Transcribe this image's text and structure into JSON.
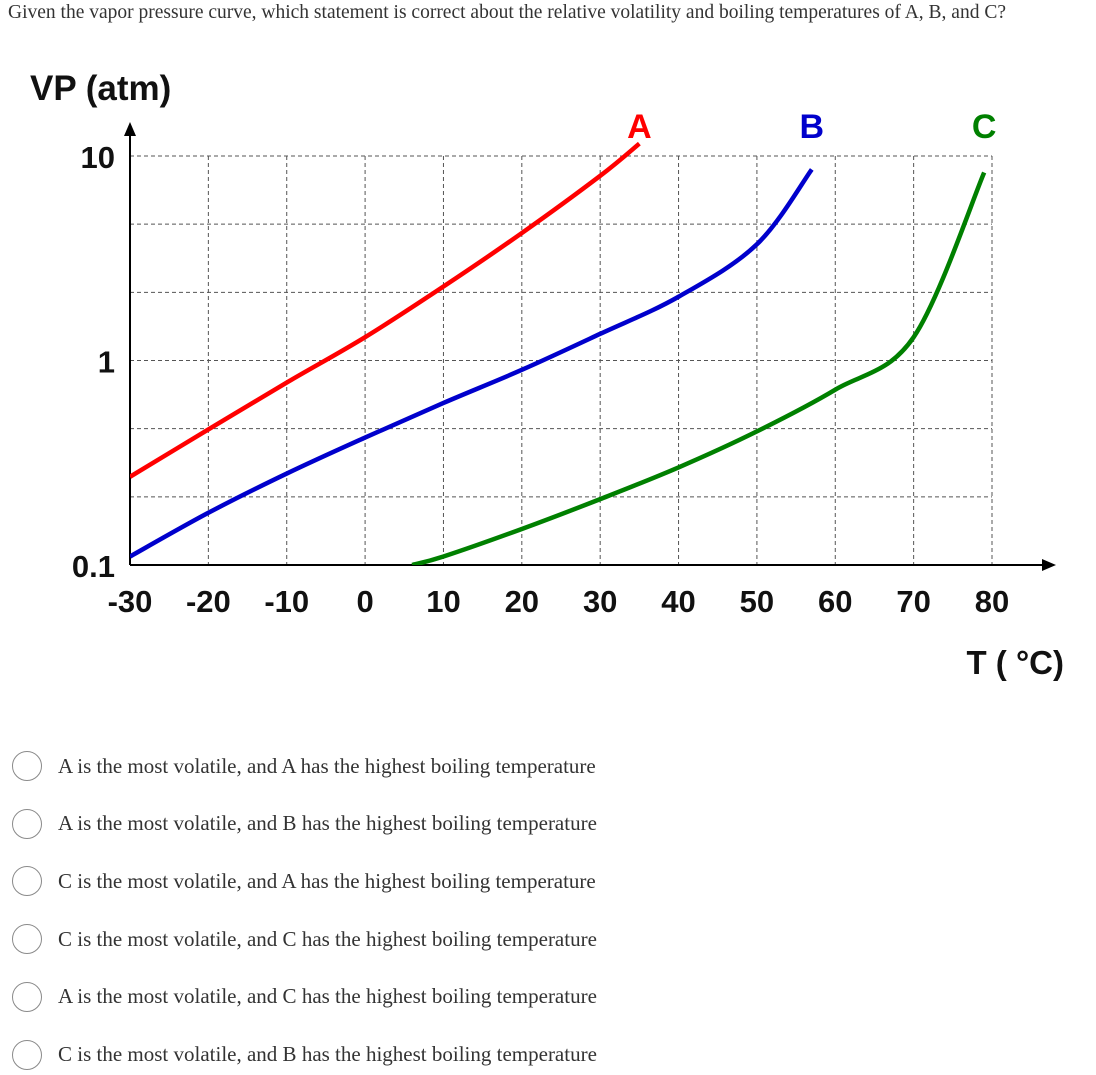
{
  "question": {
    "text": "Given the vapor pressure curve, which statement is correct about the relative volatility and boiling temperatures of A, B, and C?"
  },
  "chart_data": {
    "type": "line",
    "ylabel": "VP (atm)",
    "xlabel": "T ( °C)",
    "y_scale": "log",
    "ylim": [
      0.1,
      10
    ],
    "xlim": [
      -30,
      80
    ],
    "y_ticks": [
      "10",
      "1",
      "0.1"
    ],
    "x_ticks": [
      "-30",
      "-20",
      "-10",
      "0",
      "10",
      "20",
      "30",
      "40",
      "50",
      "60",
      "70",
      "80"
    ],
    "grid": true,
    "series": [
      {
        "name": "A",
        "color": "#ff0000",
        "x": [
          -30,
          -20,
          -10,
          0,
          10,
          20,
          30,
          35
        ],
        "y": [
          0.27,
          0.46,
          0.78,
          1.3,
          2.3,
          4.2,
          8.0,
          11.5
        ]
      },
      {
        "name": "B",
        "color": "#0000cc",
        "x": [
          -30,
          -20,
          -10,
          0,
          10,
          20,
          30,
          40,
          50,
          57
        ],
        "y": [
          0.11,
          0.18,
          0.28,
          0.42,
          0.62,
          0.9,
          1.35,
          2.05,
          3.7,
          8.6
        ]
      },
      {
        "name": "C",
        "color": "#008000",
        "x": [
          6,
          10,
          20,
          30,
          40,
          50,
          60,
          70,
          79
        ],
        "y": [
          0.1,
          0.11,
          0.15,
          0.21,
          0.3,
          0.45,
          0.72,
          1.3,
          8.3
        ]
      }
    ]
  },
  "options": [
    {
      "label": "A is the most volatile, and A has the highest boiling temperature"
    },
    {
      "label": "A is the most volatile, and B has the highest boiling temperature"
    },
    {
      "label": "C is the most volatile, and A has the highest boiling temperature"
    },
    {
      "label": "C is the most volatile, and C has the highest boiling temperature"
    },
    {
      "label": "A is the most volatile, and C has the highest boiling temperature"
    },
    {
      "label": "C is the most volatile, and B has the highest boiling temperature"
    }
  ]
}
